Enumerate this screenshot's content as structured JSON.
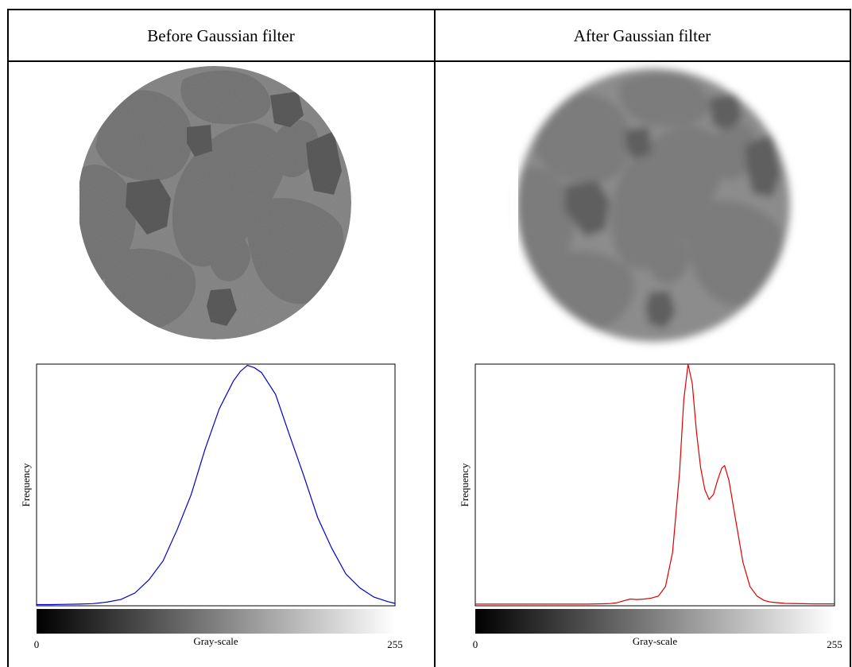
{
  "table": {
    "headers": [
      "Before Gaussian filter",
      "After Gaussian filter"
    ]
  },
  "chart_data": [
    {
      "type": "line",
      "x_label": "Gray-scale",
      "y_label": "Frequency",
      "x": [
        0,
        10,
        20,
        30,
        40,
        50,
        60,
        70,
        80,
        90,
        100,
        110,
        120,
        130,
        140,
        145,
        150,
        155,
        160,
        170,
        180,
        190,
        200,
        210,
        220,
        230,
        240,
        250,
        255
      ],
      "series": [
        {
          "color": "#0000cc",
          "values": [
            0.5,
            0.5,
            0.6,
            0.7,
            0.9,
            1.5,
            2.6,
            5.3,
            10.8,
            18.6,
            31.5,
            46,
            65,
            81.5,
            93,
            97,
            99.5,
            98.5,
            96.5,
            87.5,
            70.5,
            54,
            36.5,
            23.8,
            13.2,
            7.4,
            3.6,
            1.7,
            1.0
          ]
        }
      ],
      "xlim": [
        0,
        255
      ],
      "ylim": [
        0,
        100
      ],
      "xticks": [
        0,
        255
      ]
    },
    {
      "type": "line",
      "x_label": "Gray-scale",
      "y_label": "Frequency",
      "x": [
        0,
        20,
        40,
        60,
        80,
        95,
        100,
        105,
        110,
        115,
        120,
        125,
        130,
        135,
        140,
        145,
        148,
        151,
        154,
        157,
        160,
        163,
        166,
        169,
        172,
        175,
        177,
        180,
        185,
        190,
        195,
        200,
        205,
        210,
        220,
        240,
        255
      ],
      "series": [
        {
          "color": "#dd0000",
          "values": [
            0.7,
            0.7,
            0.7,
            0.7,
            0.7,
            0.9,
            1.2,
            2,
            2.8,
            2.6,
            2.8,
            3.2,
            4,
            8,
            22,
            55,
            85,
            100,
            92,
            72,
            57,
            48,
            44,
            46,
            52,
            57,
            58,
            52,
            35,
            18,
            8,
            4,
            2.2,
            1.5,
            1,
            0.8,
            0.8
          ]
        }
      ],
      "xlim": [
        0,
        255
      ],
      "ylim": [
        0,
        100
      ],
      "xticks": [
        0,
        255
      ]
    }
  ]
}
